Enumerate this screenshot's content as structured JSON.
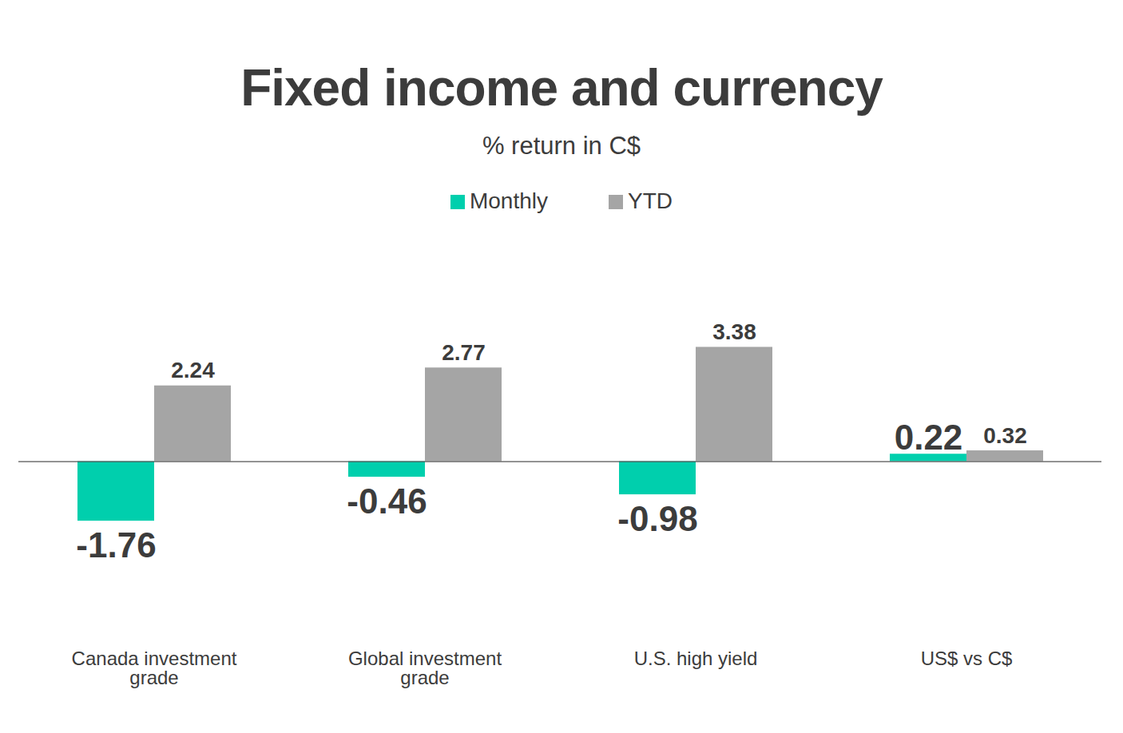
{
  "chart_data": {
    "type": "bar",
    "title": "Fixed income and currency",
    "subtitle": "% return in C$",
    "categories": [
      "Canada investment grade",
      "Global investment grade",
      "U.S. high yield",
      "US$ vs C$"
    ],
    "series": [
      {
        "name": "Monthly",
        "color": "#00cfad",
        "values": [
          -1.76,
          -0.46,
          -0.98,
          0.22
        ]
      },
      {
        "name": "YTD",
        "color": "#a5a5a5",
        "values": [
          2.24,
          2.77,
          3.38,
          0.32
        ]
      }
    ],
    "ylim": [
      -4,
      4.5
    ],
    "data_labels": true,
    "tick_labels": "x",
    "legend": "top",
    "grid": false
  }
}
